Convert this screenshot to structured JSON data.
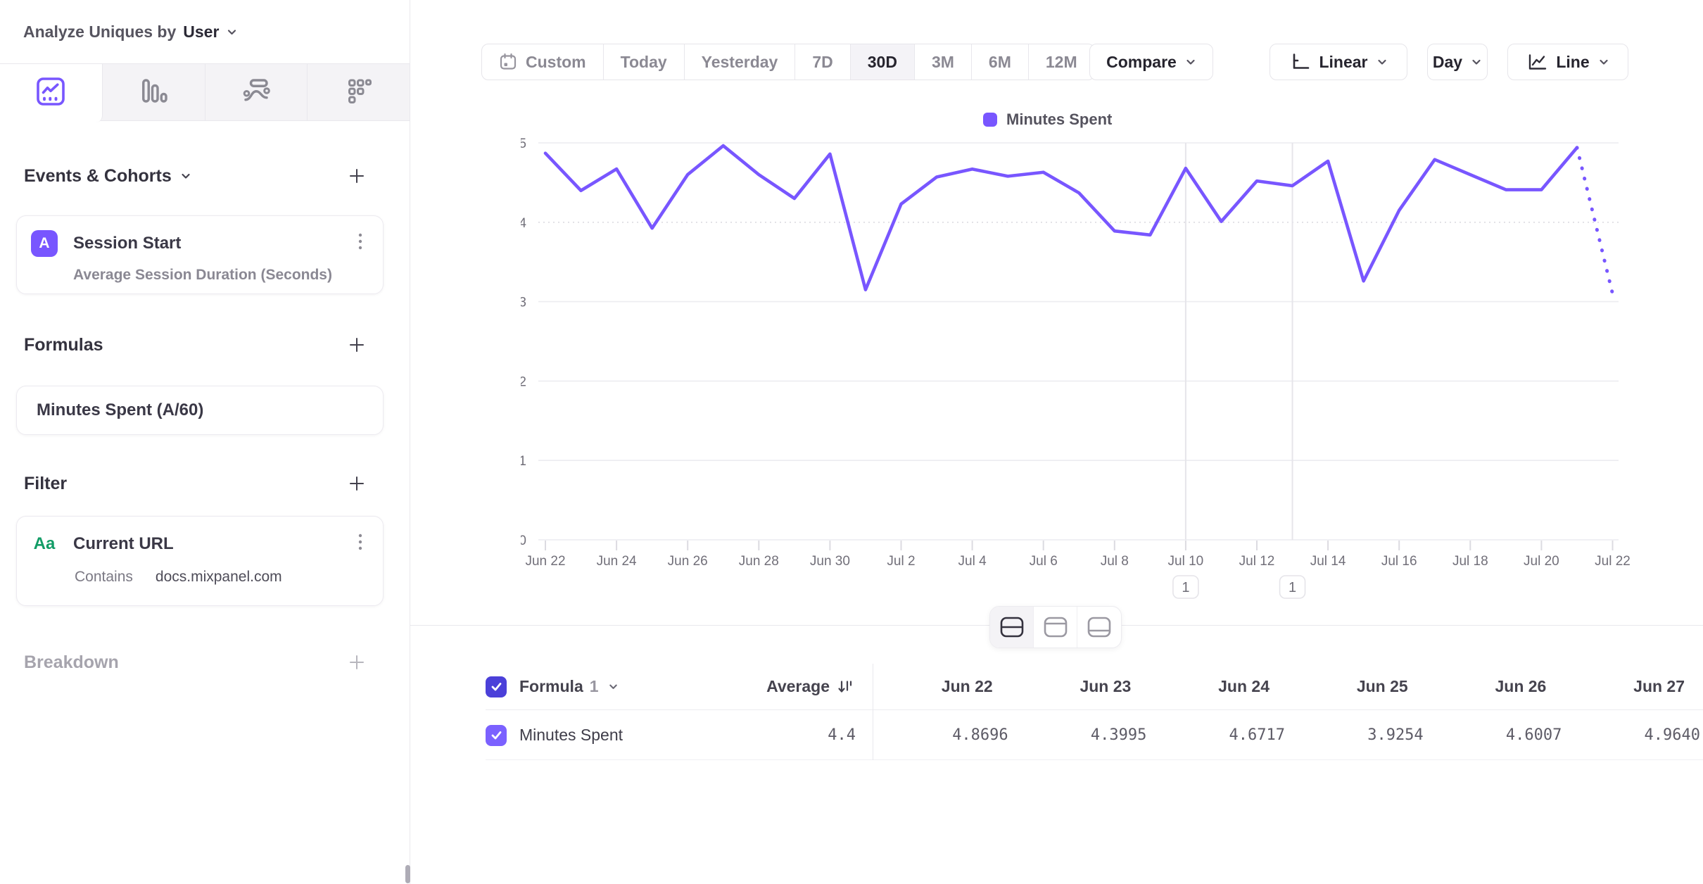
{
  "sidebar": {
    "analyze_label": "Analyze Uniques by",
    "analyze_value": "User",
    "sections": {
      "events": {
        "title": "Events & Cohorts",
        "card": {
          "badge": "A",
          "title": "Session Start",
          "subtitle": "Average Session Duration (Seconds)"
        }
      },
      "formulas": {
        "title": "Formulas",
        "card": {
          "title": "Minutes Spent (A/60)"
        }
      },
      "filter": {
        "title": "Filter",
        "card": {
          "icon_text": "Aa",
          "title": "Current URL",
          "operator": "Contains",
          "value": "docs.mixpanel.com"
        }
      },
      "breakdown": {
        "title": "Breakdown"
      }
    }
  },
  "toolbar": {
    "date_ranges": [
      "Custom",
      "Today",
      "Yesterday",
      "7D",
      "30D",
      "3M",
      "6M",
      "12M"
    ],
    "active_range": "30D",
    "compare_label": "Compare",
    "scale_label": "Linear",
    "interval_label": "Day",
    "chart_type_label": "Line"
  },
  "legend": {
    "label": "Minutes Spent",
    "color": "#7856FF"
  },
  "chart_data": {
    "type": "line",
    "title": "",
    "xlabel": "",
    "ylabel": "",
    "ylim": [
      0,
      5
    ],
    "yticks": [
      0,
      1,
      2,
      3,
      4,
      5
    ],
    "grid": true,
    "legend_position": "top-center",
    "tick_every": 2,
    "x": [
      "Jun 22",
      "Jun 23",
      "Jun 24",
      "Jun 25",
      "Jun 26",
      "Jun 27",
      "Jun 28",
      "Jun 29",
      "Jun 30",
      "Jul 1",
      "Jul 2",
      "Jul 3",
      "Jul 4",
      "Jul 5",
      "Jul 6",
      "Jul 7",
      "Jul 8",
      "Jul 9",
      "Jul 10",
      "Jul 11",
      "Jul 12",
      "Jul 13",
      "Jul 14",
      "Jul 15",
      "Jul 16",
      "Jul 17",
      "Jul 18",
      "Jul 19",
      "Jul 20",
      "Jul 21",
      "Jul 22"
    ],
    "series": [
      {
        "name": "Minutes Spent",
        "color": "#7856FF",
        "incomplete_last_segment": true,
        "values": [
          4.8696,
          4.3995,
          4.6717,
          3.9254,
          4.6007,
          4.964,
          4.6,
          4.3,
          4.86,
          3.15,
          4.23,
          4.57,
          4.67,
          4.58,
          4.63,
          4.37,
          3.89,
          3.84,
          4.68,
          4.01,
          4.52,
          4.46,
          4.77,
          3.26,
          4.15,
          4.79,
          4.6,
          4.41,
          4.41,
          4.94,
          3.1
        ]
      }
    ],
    "vertical_gridlines": [
      "Jul 10",
      "Jul 13"
    ]
  },
  "annotations": [
    {
      "label": "1",
      "day": "Jul 10"
    },
    {
      "label": "1",
      "day": "Jul 13"
    }
  ],
  "table": {
    "series_label": "Formula",
    "series_index": "1",
    "average_label": "Average",
    "columns": [
      "Jun 22",
      "Jun 23",
      "Jun 24",
      "Jun 25",
      "Jun 26",
      "Jun 27"
    ],
    "rows": [
      {
        "name": "Minutes Spent",
        "average": "4.4",
        "values": [
          "4.8696",
          "4.3995",
          "4.6717",
          "3.9254",
          "4.6007",
          "4.9640"
        ]
      }
    ]
  },
  "colors": {
    "accent": "#7856FF",
    "header_checkbox": "#4b40d9",
    "row_checkbox": "#7b61ff",
    "filter_icon_green": "#129c66",
    "gridline": "#ececf0",
    "border": "#e9e8ed"
  }
}
